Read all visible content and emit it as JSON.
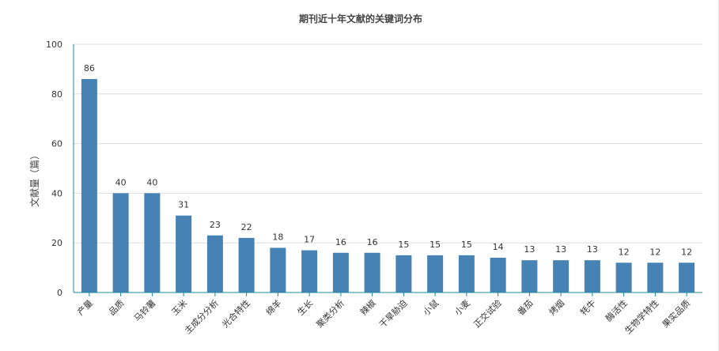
{
  "chart_data": {
    "type": "bar",
    "title": "期刊近十年文献的关键词分布",
    "xlabel": "",
    "ylabel": "文献量（篇）",
    "ylim": [
      0,
      100
    ],
    "yticks": [
      0,
      20,
      40,
      60,
      80,
      100
    ],
    "grid": true,
    "legend": "none",
    "bar_color": "#4682b4",
    "axis_color": "#1a8aa0",
    "categories": [
      "产量",
      "品质",
      "马铃薯",
      "玉米",
      "主成分分析",
      "光合特性",
      "绵羊",
      "生长",
      "聚类分析",
      "辣椒",
      "干旱胁迫",
      "小鼠",
      "小麦",
      "正交试验",
      "番茄",
      "烤烟",
      "牦牛",
      "酶活性",
      "生物学特性",
      "果实品质"
    ],
    "values": [
      86,
      40,
      40,
      31,
      23,
      22,
      18,
      17,
      16,
      16,
      15,
      15,
      15,
      14,
      13,
      13,
      13,
      12,
      12,
      12
    ]
  }
}
